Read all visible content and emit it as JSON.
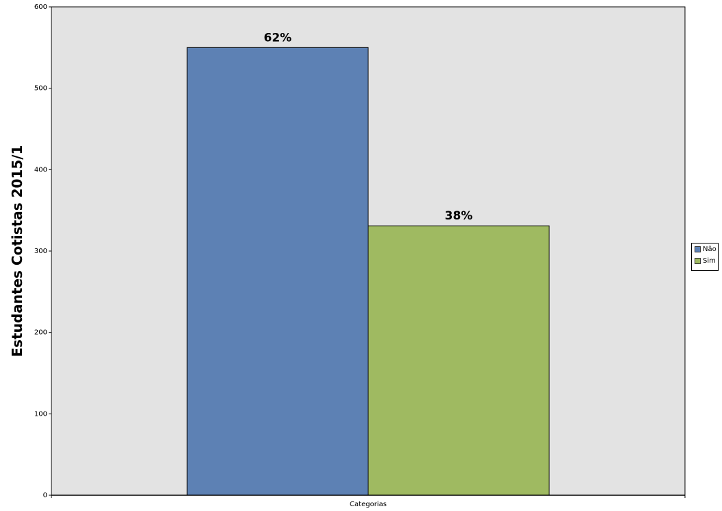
{
  "chart_data": {
    "type": "bar",
    "title": "",
    "xlabel": "Categorias",
    "ylabel": "Estudantes Cotistas 2015/1",
    "ylim": [
      0,
      600
    ],
    "yticks": [
      0,
      100,
      200,
      300,
      400,
      500,
      600
    ],
    "grid": false,
    "legend_position": "right",
    "categories": [
      "Categorias"
    ],
    "series": [
      {
        "name": "Não",
        "values": [
          550
        ],
        "label": "62%",
        "color": "#5d81b4"
      },
      {
        "name": "Sim",
        "values": [
          331
        ],
        "label": "38%",
        "color": "#9fba61"
      }
    ],
    "plot_background": "#e3e3e3"
  }
}
